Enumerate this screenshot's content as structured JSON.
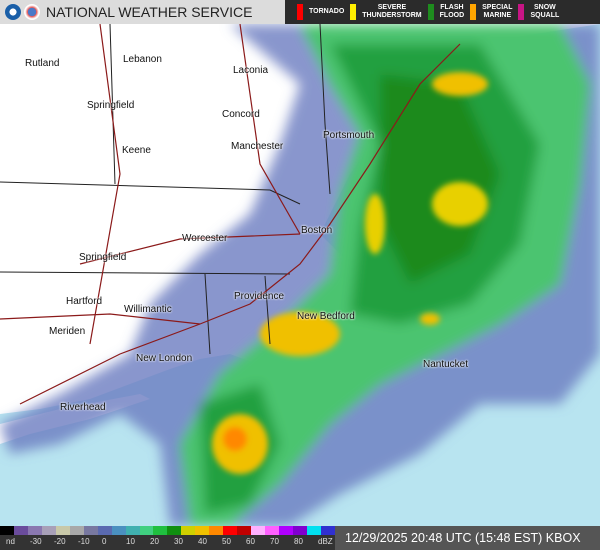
{
  "header": {
    "title": "NATIONAL WEATHER SERVICE",
    "warnings": [
      {
        "label": "TORNADO",
        "color": "#ff0000"
      },
      {
        "label": "SEVERE\nTHUNDERSTORM",
        "color": "#ffee00"
      },
      {
        "label": "FLASH\nFLOOD",
        "color": "#1e8c1e"
      },
      {
        "label": "SPECIAL\nMARINE",
        "color": "#ffa500"
      },
      {
        "label": "SNOW\nSQUALL",
        "color": "#c71585"
      }
    ]
  },
  "map": {
    "cities": [
      {
        "name": "Rutland"
      },
      {
        "name": "Lebanon"
      },
      {
        "name": "Laconia"
      },
      {
        "name": "Springfield"
      },
      {
        "name": "Concord"
      },
      {
        "name": "Portsmouth"
      },
      {
        "name": "Keene"
      },
      {
        "name": "Manchester"
      },
      {
        "name": "Worcester"
      },
      {
        "name": "Boston"
      },
      {
        "name": "Springfield"
      },
      {
        "name": "Providence"
      },
      {
        "name": "Hartford"
      },
      {
        "name": "Willimantic"
      },
      {
        "name": "New Bedford"
      },
      {
        "name": "Meriden"
      },
      {
        "name": "New London"
      },
      {
        "name": "Nantucket"
      },
      {
        "name": "Riverhead"
      }
    ],
    "colors": {
      "ocean": "#b8e4f0",
      "land": "#ffffff"
    }
  },
  "legend": {
    "ticks": [
      "nd",
      "-30",
      "-20",
      "-10",
      "0",
      "10",
      "20",
      "30",
      "40",
      "50",
      "60",
      "70",
      "80",
      "dBZ"
    ],
    "colors": [
      "#000000",
      "#6a4c9c",
      "#8a78b0",
      "#a8a0b8",
      "#c8c8a8",
      "#a8a8a8",
      "#7878a0",
      "#5a6ab0",
      "#4a90c0",
      "#40b0b0",
      "#40d080",
      "#20c040",
      "#109010",
      "#d0d000",
      "#f0c000",
      "#ff8800",
      "#ff0000",
      "#c00000",
      "#ffb0ff",
      "#ff60ff",
      "#b000ff",
      "#8000d0",
      "#00e0f0",
      "#3030d0"
    ],
    "timestamp": "12/29/2025 20:48 UTC (15:48 EST) KBOX"
  }
}
